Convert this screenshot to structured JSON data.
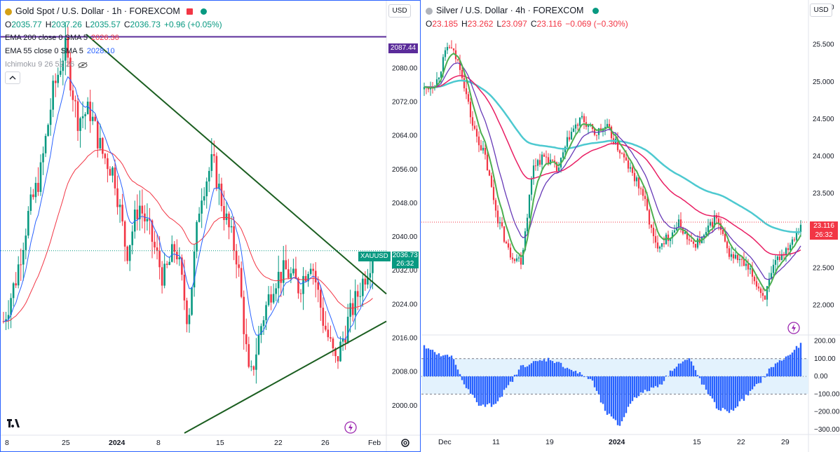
{
  "left": {
    "title": "Gold Spot / U.S. Dollar · 1h · FOREXCOM",
    "ohlc": {
      "o_label": "O",
      "o": "2035.77",
      "h_label": "H",
      "h": "2037.26",
      "l_label": "L",
      "l": "2035.57",
      "c_label": "C",
      "c": "2036.73",
      "change": "+0.96 (+0.05%)"
    },
    "indicators": [
      {
        "label": "EMA 200 close 0 SMA 5",
        "value": "2026.36",
        "color": "#f23645"
      },
      {
        "label": "EMA 55 close 0 SMA 5",
        "value": "2028.10",
        "color": "#2962ff"
      },
      {
        "label": "Ichimoku 9 26 52 26",
        "value": "",
        "color": "#9598a1"
      }
    ],
    "currency": "USD",
    "price_label": {
      "symbol": "XAUUSD",
      "price": "2036.73",
      "countdown": "26:32"
    },
    "line_label": "2087.44",
    "colors": {
      "up": "#089981",
      "down": "#f23645",
      "ema200": "#f23645",
      "ema55": "#2962ff",
      "trendline": "#1b5e20",
      "hline": "#5b2c9a"
    },
    "chart_data": {
      "type": "candlestick",
      "y_ticks": [
        "2080.00",
        "2072.00",
        "2064.00",
        "2056.00",
        "2048.00",
        "2040.00",
        "2032.00",
        "2024.00",
        "2016.00",
        "2008.00",
        "2000.00"
      ],
      "x_ticks": [
        "8",
        "25",
        "2024",
        "8",
        "15",
        "22",
        "26",
        "Feb"
      ],
      "ylim": [
        1993,
        2096
      ],
      "horizontal_line": 2087.44,
      "trendlines": [
        {
          "from": [
            "Dec 28",
            2088
          ],
          "to": [
            "Feb 1",
            2026
          ]
        },
        {
          "from": [
            "Jan 17",
            1988
          ],
          "to": [
            "Feb 1",
            2021
          ]
        }
      ],
      "last_price": 2036.73
    }
  },
  "right": {
    "title": "Silver / U.S. Dollar · 4h · FOREXCOM",
    "ohlc": {
      "o_label": "O",
      "o": "23.185",
      "h_label": "H",
      "h": "23.262",
      "l_label": "L",
      "l": "23.097",
      "c_label": "C",
      "c": "23.116",
      "change": "−0.069 (−0.30%)"
    },
    "currency": "USD",
    "price_label": {
      "price": "23.116",
      "countdown": "26:32"
    },
    "colors": {
      "up": "#089981",
      "down": "#f23645",
      "ema_red": "#e91e63",
      "ema_cyan": "#4dc9d0",
      "ema_purple": "#673ab7",
      "ema_green": "#4caf50",
      "osc": "#2962ff",
      "band": "#e3f2fd"
    },
    "chart_data": {
      "type": "candlestick",
      "y_ticks": [
        "26.000",
        "25.500",
        "25.000",
        "24.500",
        "24.000",
        "23.500",
        "23.000",
        "22.500",
        "22.000"
      ],
      "x_ticks": [
        "Dec",
        "11",
        "19",
        "2024",
        "15",
        "22",
        "29"
      ],
      "ylim": [
        21.6,
        26.1
      ],
      "last_price": 23.116,
      "oscillator": {
        "y_ticks": [
          "200.00",
          "100.00",
          "0.00",
          "−100.00",
          "−200.00",
          "−300.00"
        ],
        "ylim": [
          -320,
          210
        ],
        "band": [
          -100,
          100
        ]
      }
    }
  }
}
